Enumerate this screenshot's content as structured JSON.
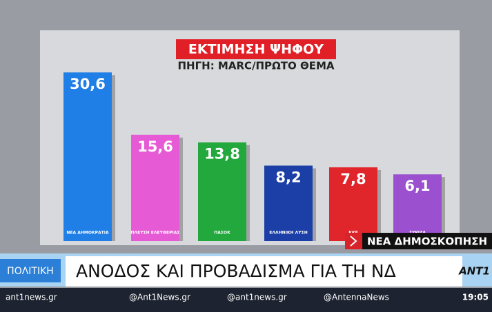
{
  "chart_data": {
    "type": "bar",
    "title": "ΕΚΤΙΜΗΣΗ ΨΗΦΟΥ",
    "subtitle": "ΠΗΓΗ: MARC/ΠΡΩΤΟ ΘΕΜΑ",
    "categories": [
      "ΝΕΑ ΔΗΜΟΚΡΑΤΙΑ",
      "ΠΛΕΥΣΗ ΕΛΕΥΘΕΡΙΑΣ",
      "ΠΑΣΟΚ",
      "ΕΛΛΗΝΙΚΗ ΛΥΣΗ",
      "ΚΚΕ",
      "ΣΥΡΙΖΑ"
    ],
    "values": [
      30.6,
      15.6,
      13.8,
      8.2,
      7.8,
      6.1
    ],
    "value_labels": [
      "30,6",
      "15,6",
      "13,8",
      "8,2",
      "7,8",
      "6,1"
    ],
    "colors": [
      "#1f7fe6",
      "#e65ad6",
      "#22a83c",
      "#1b3fa6",
      "#e0262b",
      "#9a50cf"
    ]
  },
  "overlay": {
    "tag": "ΝΕΑ ΔΗΜΟΣΚΟΠΗΣΗ",
    "section": "ΠΟΛΙΤΙΚΗ",
    "headline": "ΑΝΟΔΟΣ ΚΑΙ ΠΡΟΒΑΔΙΣΜΑ ΓΙΑ ΤΗ ΝΔ",
    "channel": "ANT1"
  },
  "footer": {
    "site": "ant1news.gr",
    "facebook": "@Ant1News.gr",
    "tiktok": "@ant1news.gr",
    "x": "@AntennaNews",
    "time": "19:05"
  }
}
